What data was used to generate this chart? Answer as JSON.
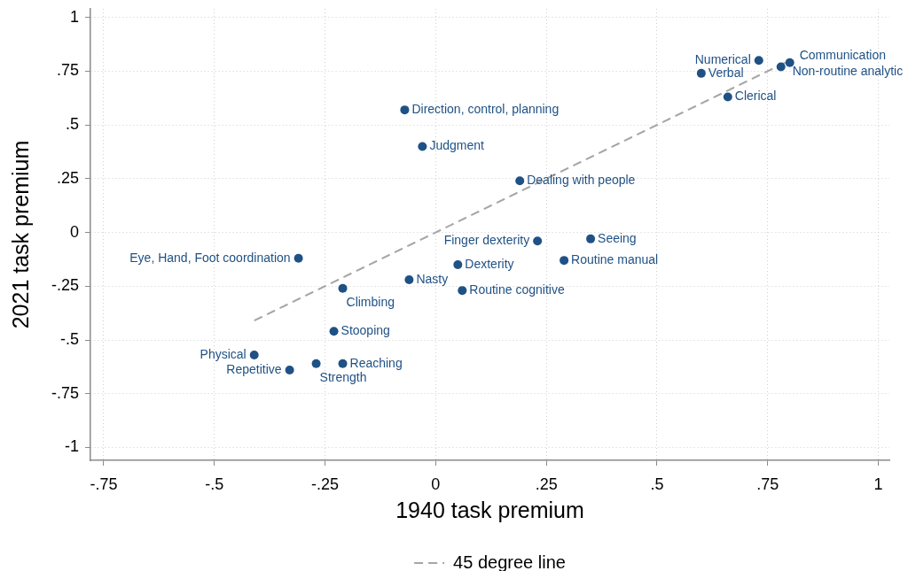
{
  "chart_data": {
    "type": "scatter",
    "xlabel": "1940 task premium",
    "ylabel": "2021 task premium",
    "xlim": [
      -0.78,
      1.025
    ],
    "ylim": [
      -1.06,
      1.04
    ],
    "xticks": [
      {
        "value": -0.75,
        "label": "-.75"
      },
      {
        "value": -0.5,
        "label": "-.5"
      },
      {
        "value": -0.25,
        "label": "-.25"
      },
      0,
      {
        "value": 0.25,
        "label": ".25"
      },
      {
        "value": 0.5,
        "label": ".5"
      },
      {
        "value": 0.75,
        "label": ".75"
      },
      1
    ],
    "yticks": [
      -1,
      {
        "value": -0.75,
        "label": "-.75"
      },
      {
        "value": -0.5,
        "label": "-.5"
      },
      {
        "value": -0.25,
        "label": "-.25"
      },
      0,
      {
        "value": 0.25,
        "label": ".25"
      },
      {
        "value": 0.5,
        "label": ".5"
      },
      {
        "value": 0.75,
        "label": ".75"
      },
      1
    ],
    "grid": true,
    "legend": "bottom",
    "series": [
      {
        "type": "scatter",
        "color": "#1f5185",
        "marker": "circle",
        "x": [
          -0.07,
          -0.03,
          0.73,
          0.6,
          0.8,
          0.78,
          0.66,
          0.19,
          0.23,
          0.35,
          0.05,
          0.29,
          0.06,
          -0.31,
          -0.06,
          -0.21,
          -0.23,
          -0.41,
          -0.33,
          -0.27,
          -0.21
        ],
        "values": [
          0.57,
          0.4,
          0.8,
          0.74,
          0.79,
          0.77,
          0.63,
          0.24,
          -0.04,
          -0.03,
          -0.15,
          -0.13,
          -0.27,
          -0.12,
          -0.22,
          -0.26,
          -0.46,
          -0.57,
          -0.64,
          -0.61,
          -0.61
        ],
        "value_labels": [
          "Direction, control, planning",
          "Judgment",
          "Numerical",
          "Verbal",
          "Communication",
          "Non-routine analytic",
          "Clerical",
          "Dealing with people",
          "Finger dexterity",
          "Seeing",
          "Dexterity",
          "Routine manual",
          "Routine cognitive",
          "Eye, Hand, Foot coordination",
          "Nasty",
          "Climbing",
          "Stooping",
          "Physical",
          "Repetitive",
          "Strength",
          "Reaching"
        ]
      },
      {
        "type": "line",
        "name": "45 degree line",
        "color": "#a6a6a6",
        "line_style": "dashed",
        "marker": "none",
        "x": [
          -0.41,
          0.8
        ],
        "values": [
          -0.41,
          0.8
        ]
      }
    ]
  }
}
